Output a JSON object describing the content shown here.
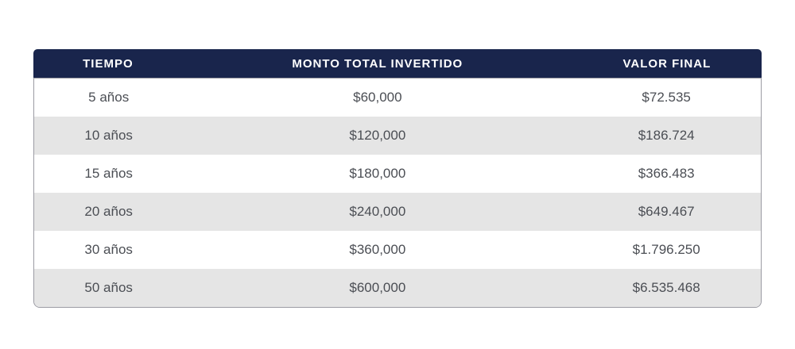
{
  "chart_data": {
    "type": "table",
    "columns": [
      "TIEMPO",
      "MONTO TOTAL INVERTIDO",
      "VALOR FINAL"
    ],
    "rows": [
      [
        "5 años",
        "$60,000",
        "$72.535"
      ],
      [
        "10 años",
        "$120,000",
        "$186.724"
      ],
      [
        "15 años",
        "$180,000",
        "$366.483"
      ],
      [
        "20 años",
        "$240,000",
        "$649.467"
      ],
      [
        "30 años",
        "$360,000",
        "$1.796.250"
      ],
      [
        "50 años",
        "$600,000",
        "$6.535.468"
      ]
    ],
    "title": "",
    "legend": "none",
    "grid": "alternating-row-stripes"
  },
  "colors": {
    "header_bg": "#19254c",
    "header_text": "#ffffff",
    "row_alt_bg": "#e5e5e5",
    "row_bg": "#ffffff",
    "body_text": "#4b4e54",
    "border_color": "#9b9ba3",
    "page_bg": "#ffffff"
  }
}
